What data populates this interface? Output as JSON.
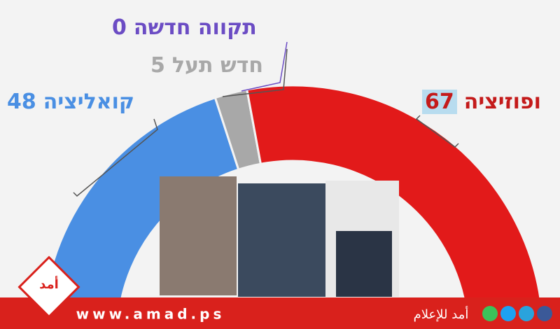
{
  "chart_data": {
    "type": "semicircle",
    "series": [
      {
        "name": "קואליציה",
        "color": "#4a8fe3",
        "values": [
          48
        ]
      },
      {
        "name": "חדש תעל",
        "color": "#a8a8a8",
        "values": [
          5
        ]
      },
      {
        "name": "תקווה חדשה",
        "color": "#6b4cc4",
        "values": [
          0
        ]
      },
      {
        "name": "ופוזיציה",
        "color": "#e21a1a",
        "values": [
          67
        ]
      }
    ]
  },
  "footer": {
    "url": "www.amad.ps",
    "brand": "أمد للإعلام",
    "logo": "أمد"
  }
}
